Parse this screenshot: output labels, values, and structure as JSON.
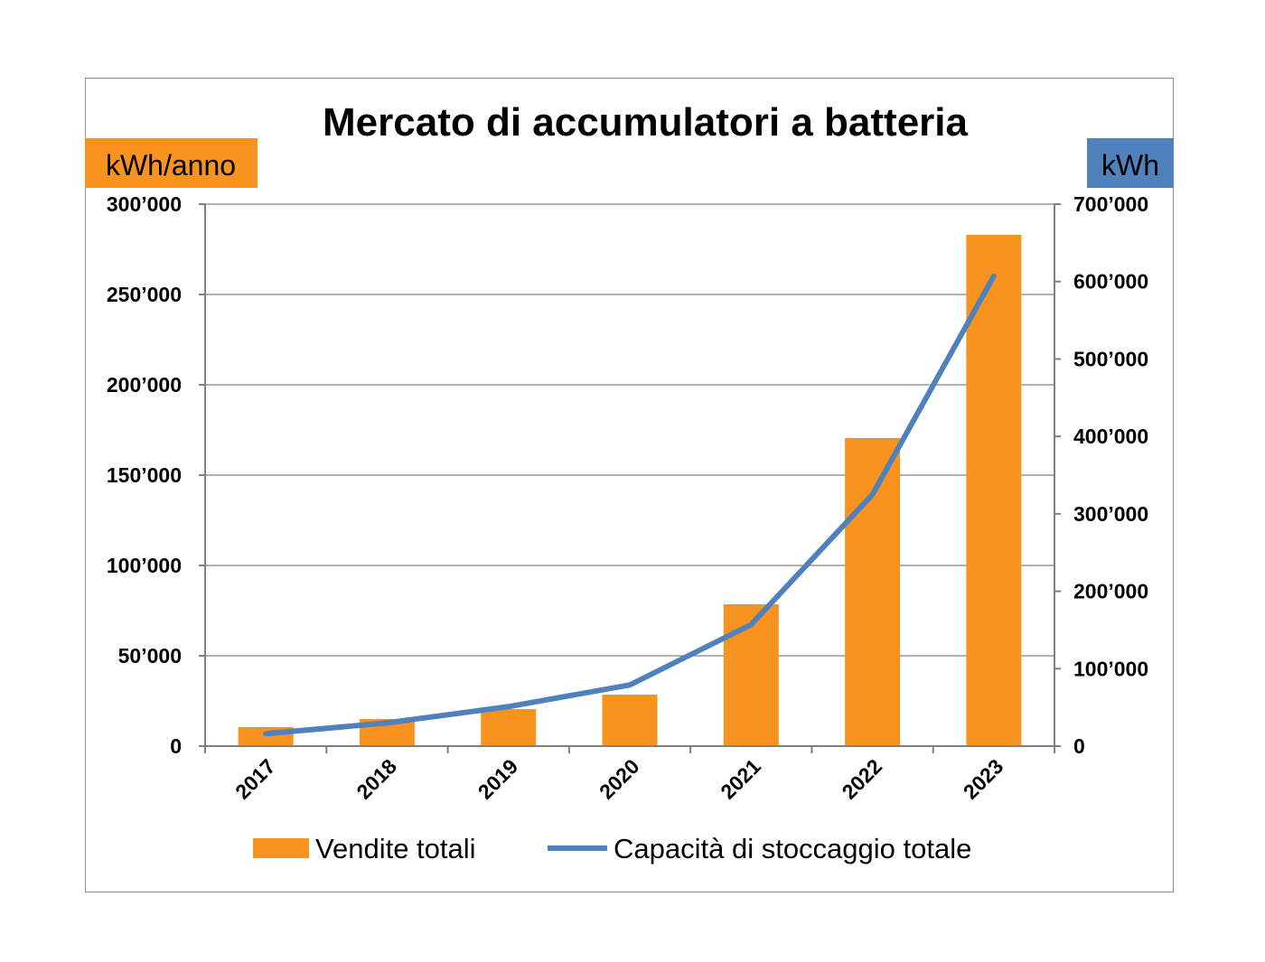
{
  "chart_data": {
    "type": "bar+line",
    "title": "Mercato di accumulatori a batteria",
    "categories": [
      "2017",
      "2018",
      "2019",
      "2020",
      "2021",
      "2022",
      "2023"
    ],
    "left_axis": {
      "unit_label": "kWh/anno",
      "ylim": [
        0,
        300000
      ],
      "ticks": [
        0,
        50000,
        100000,
        150000,
        200000,
        250000,
        300000
      ],
      "tick_labels": [
        "0",
        "50’000",
        "100’000",
        "150’000",
        "200’000",
        "250’000",
        "300’000"
      ]
    },
    "right_axis": {
      "unit_label": "kWh",
      "ylim": [
        0,
        700000
      ],
      "ticks": [
        0,
        100000,
        200000,
        300000,
        400000,
        500000,
        600000,
        700000
      ],
      "tick_labels": [
        "0",
        "100’000",
        "200’000",
        "300’000",
        "400’000",
        "500’000",
        "600’000",
        "700’000"
      ]
    },
    "series": [
      {
        "name": "Vendite totali",
        "kind": "bar",
        "axis": "left",
        "color": "#f7931e",
        "values": [
          10500,
          15000,
          20500,
          28500,
          78500,
          170500,
          283000
        ]
      },
      {
        "name": "Capacità di stoccaggio totale",
        "kind": "line",
        "axis": "right",
        "color": "#4f81bd",
        "values": [
          16000,
          30000,
          51000,
          79000,
          157000,
          325000,
          607000
        ]
      }
    ],
    "grid": true,
    "legend": "bottom",
    "colors": {
      "left_unit_badge": "#f7931e",
      "right_unit_badge": "#4f81bd",
      "gridline": "#808080"
    }
  }
}
